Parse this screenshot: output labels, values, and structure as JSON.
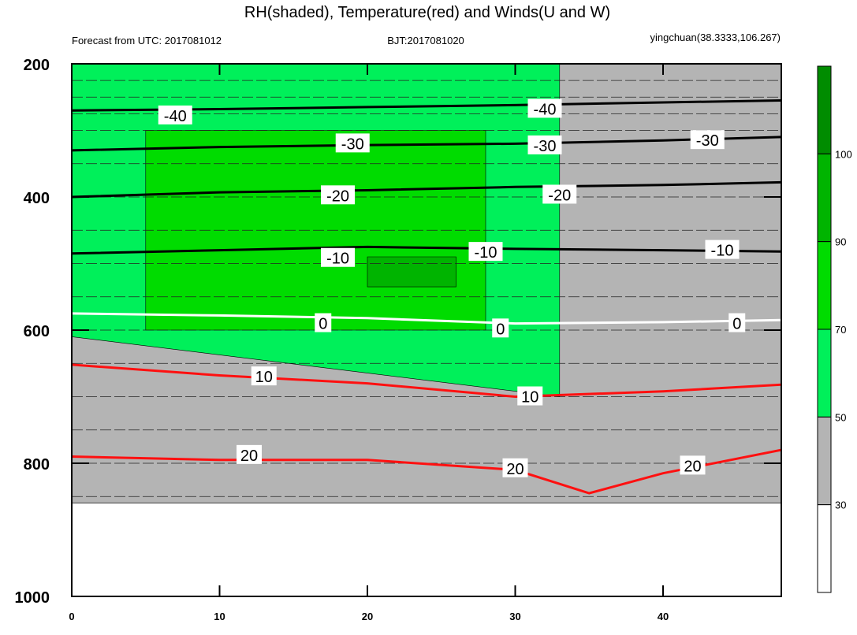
{
  "chart_data": {
    "type": "contour",
    "title": "RH(shaded), Temperature(red) and Winds(U and W)",
    "subtitle_left": "Forecast from UTC: 2017081012",
    "subtitle_center": "BJT:2017081020",
    "subtitle_right": "yingchuan(38.3333,106.267)",
    "xlim": [
      0,
      48
    ],
    "ylim": [
      200,
      1000
    ],
    "y_reversed": true,
    "x_ticks": [
      0,
      10,
      20,
      30,
      40
    ],
    "x_tick_labels": [
      "0",
      "10",
      "20",
      "30",
      "40"
    ],
    "y_ticks": [
      200,
      400,
      600,
      800,
      1000
    ],
    "y_tick_labels": [
      "200",
      "400",
      "600",
      "800",
      "1000"
    ],
    "wind_levels": [
      200,
      225,
      250,
      275,
      300,
      350,
      400,
      450,
      500,
      550,
      600,
      650,
      700,
      750,
      800,
      850
    ],
    "rh_colorbar": {
      "levels": [
        30,
        50,
        70,
        90,
        100
      ],
      "labels": [
        "30",
        "50",
        "70",
        "90",
        "100"
      ],
      "colors": [
        "#ffffff",
        "#b4b4b4",
        "#00f05a",
        "#00dc00",
        "#00b400",
        "#008c00"
      ]
    },
    "temperature_contours": [
      {
        "value": -40,
        "label": "-40",
        "color": "#000000",
        "points": [
          [
            0,
            270
          ],
          [
            10,
            268
          ],
          [
            20,
            265
          ],
          [
            30,
            262
          ],
          [
            40,
            258
          ],
          [
            48,
            255
          ]
        ],
        "label_at": [
          [
            7,
            278
          ],
          [
            32,
            268
          ]
        ]
      },
      {
        "value": -30,
        "label": "-30",
        "color": "#000000",
        "points": [
          [
            0,
            330
          ],
          [
            10,
            325
          ],
          [
            20,
            322
          ],
          [
            30,
            320
          ],
          [
            40,
            315
          ],
          [
            48,
            310
          ]
        ],
        "label_at": [
          [
            19,
            320
          ],
          [
            32,
            323
          ],
          [
            43,
            315
          ]
        ]
      },
      {
        "value": -20,
        "label": "-20",
        "color": "#000000",
        "points": [
          [
            0,
            400
          ],
          [
            10,
            393
          ],
          [
            20,
            390
          ],
          [
            30,
            385
          ],
          [
            40,
            382
          ],
          [
            48,
            378
          ]
        ],
        "label_at": [
          [
            18,
            398
          ],
          [
            33,
            397
          ]
        ]
      },
      {
        "value": -10,
        "label": "-10",
        "color": "#000000",
        "points": [
          [
            0,
            485
          ],
          [
            10,
            480
          ],
          [
            20,
            475
          ],
          [
            30,
            478
          ],
          [
            40,
            480
          ],
          [
            48,
            482
          ]
        ],
        "label_at": [
          [
            18,
            492
          ],
          [
            28,
            483
          ],
          [
            44,
            480
          ]
        ]
      },
      {
        "value": 0,
        "label": "0",
        "color": "#ffffff",
        "points": [
          [
            0,
            575
          ],
          [
            10,
            578
          ],
          [
            20,
            582
          ],
          [
            30,
            590
          ],
          [
            40,
            588
          ],
          [
            48,
            585
          ]
        ],
        "label_at": [
          [
            17,
            590
          ],
          [
            29,
            598
          ],
          [
            45,
            590
          ]
        ]
      },
      {
        "value": 10,
        "label": "10",
        "color": "#ff1010",
        "points": [
          [
            0,
            652
          ],
          [
            10,
            668
          ],
          [
            20,
            680
          ],
          [
            30,
            700
          ],
          [
            40,
            692
          ],
          [
            48,
            682
          ]
        ],
        "label_at": [
          [
            13,
            670
          ],
          [
            31,
            700
          ]
        ]
      },
      {
        "value": 20,
        "label": "20",
        "color": "#ff1010",
        "points": [
          [
            0,
            790
          ],
          [
            10,
            795
          ],
          [
            20,
            795
          ],
          [
            30,
            810
          ],
          [
            35,
            845
          ],
          [
            40,
            815
          ],
          [
            48,
            780
          ]
        ],
        "label_at": [
          [
            12,
            788
          ],
          [
            30,
            808
          ],
          [
            42,
            804
          ]
        ]
      }
    ],
    "rh_regions": [
      {
        "rh_class": "30-50",
        "description_points": [
          [
            0,
            200
          ],
          [
            48,
            200
          ],
          [
            48,
            860
          ],
          [
            0,
            860
          ]
        ]
      },
      {
        "rh_class": "50-70",
        "description_points": [
          [
            0,
            200
          ],
          [
            33,
            200
          ],
          [
            33,
            700
          ],
          [
            0,
            610
          ]
        ]
      },
      {
        "rh_class": "70-90",
        "description_points": [
          [
            5,
            300
          ],
          [
            28,
            300
          ],
          [
            28,
            600
          ],
          [
            5,
            600
          ]
        ]
      },
      {
        "rh_class": "90-100",
        "description_points": [
          [
            20,
            490
          ],
          [
            26,
            490
          ],
          [
            26,
            535
          ],
          [
            20,
            535
          ]
        ]
      }
    ]
  }
}
